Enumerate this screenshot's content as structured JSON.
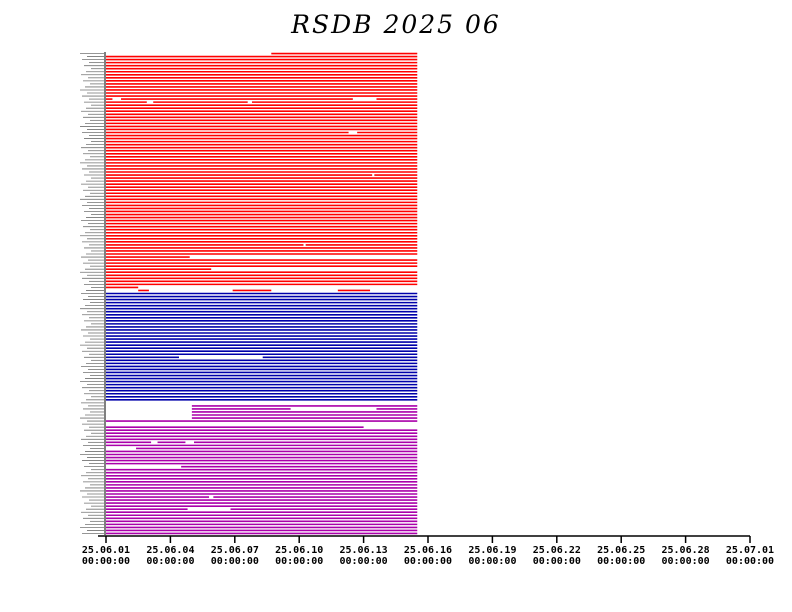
{
  "title": "RSDB  2025  06",
  "chart_data": {
    "type": "bar",
    "orientation": "horizontal-timeline",
    "x_ticks": [
      [
        "25.06.01",
        "00:00:00"
      ],
      [
        "25.06.04",
        "00:00:00"
      ],
      [
        "25.06.07",
        "00:00:00"
      ],
      [
        "25.06.10",
        "00:00:00"
      ],
      [
        "25.06.13",
        "00:00:00"
      ],
      [
        "25.06.16",
        "00:00:00"
      ],
      [
        "25.06.19",
        "00:00:00"
      ],
      [
        "25.06.22",
        "00:00:00"
      ],
      [
        "25.06.25",
        "00:00:00"
      ],
      [
        "25.06.28",
        "00:00:00"
      ],
      [
        "25.07.01",
        "00:00:00"
      ]
    ],
    "x_range_days": [
      0,
      30
    ],
    "data_end_day": 14.5,
    "groups": [
      {
        "color": "#ff0000",
        "rows": 79
      },
      {
        "color": "#0000aa",
        "rows": 37
      },
      {
        "color": "#aa00aa",
        "rows": 43
      }
    ],
    "gaps": [
      {
        "row": 0,
        "start": 0,
        "end": 7.7
      },
      {
        "row": 15,
        "start": 0.3,
        "end": 0.7
      },
      {
        "row": 15,
        "start": 11.5,
        "end": 12.6
      },
      {
        "row": 16,
        "start": 1.9,
        "end": 2.2
      },
      {
        "row": 16,
        "start": 6.6,
        "end": 6.8
      },
      {
        "row": 26,
        "start": 11.3,
        "end": 11.7
      },
      {
        "row": 40,
        "start": 12.4,
        "end": 12.5
      },
      {
        "row": 63,
        "start": 9.2,
        "end": 9.3
      },
      {
        "row": 67,
        "start": 3.9,
        "end": 14.5
      },
      {
        "row": 71,
        "start": 4.9,
        "end": 14.5
      },
      {
        "row": 77,
        "start": 1.5,
        "end": 14.5
      },
      {
        "row": 78,
        "start": 0,
        "end": 1.5
      },
      {
        "row": 78,
        "start": 2.0,
        "end": 5.9
      },
      {
        "row": 78,
        "start": 7.7,
        "end": 10.8
      },
      {
        "row": 78,
        "start": 12.3,
        "end": 14.5
      },
      {
        "row": 100,
        "start": 3.4,
        "end": 7.3
      },
      {
        "row": 115,
        "start": 0,
        "end": 14.5
      },
      {
        "row": 116,
        "start": 0,
        "end": 4.0
      },
      {
        "row": 117,
        "start": 0,
        "end": 4.0
      },
      {
        "row": 117,
        "start": 8.6,
        "end": 12.6
      },
      {
        "row": 118,
        "start": 0,
        "end": 4.0
      },
      {
        "row": 119,
        "start": 0,
        "end": 4.0
      },
      {
        "row": 120,
        "start": 0,
        "end": 4.0
      },
      {
        "row": 122,
        "start": 0,
        "end": 14.5
      },
      {
        "row": 123,
        "start": 12.0,
        "end": 14.5
      },
      {
        "row": 128,
        "start": 2.1,
        "end": 2.4
      },
      {
        "row": 128,
        "start": 3.7,
        "end": 4.1
      },
      {
        "row": 130,
        "start": 0,
        "end": 1.4
      },
      {
        "row": 136,
        "start": 0,
        "end": 3.5
      },
      {
        "row": 146,
        "start": 4.8,
        "end": 5.0
      },
      {
        "row": 150,
        "start": 3.8,
        "end": 5.8
      }
    ]
  }
}
